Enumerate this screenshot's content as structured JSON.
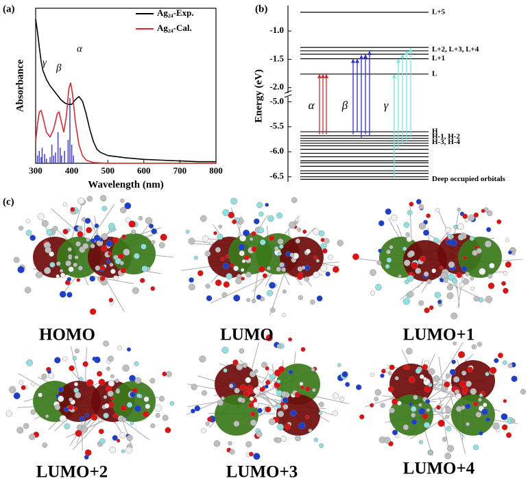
{
  "panels": {
    "a": "(a)",
    "b": "(b)",
    "c": "(c)"
  },
  "chart_data": [
    {
      "type": "line",
      "x_label": "Wavelength (nm)",
      "y_label": "Absorbance",
      "xlim": [
        300,
        800
      ],
      "xticks": [
        300,
        400,
        500,
        600,
        700,
        800
      ],
      "ylim": [
        0,
        1
      ],
      "legend": "upper right",
      "series": [
        {
          "name": "Ag₂₄-Exp.",
          "color": "#000000",
          "x": [
            300,
            305,
            310,
            315,
            320,
            330,
            340,
            350,
            360,
            370,
            380,
            390,
            400,
            410,
            420,
            430,
            440,
            450,
            460,
            470,
            480,
            500,
            550,
            600,
            650,
            700,
            750,
            800
          ],
          "values": [
            0.93,
            0.85,
            0.75,
            0.66,
            0.6,
            0.54,
            0.5,
            0.47,
            0.44,
            0.41,
            0.39,
            0.38,
            0.38,
            0.41,
            0.43,
            0.4,
            0.32,
            0.22,
            0.14,
            0.09,
            0.07,
            0.05,
            0.035,
            0.025,
            0.02,
            0.015,
            0.01,
            0.01
          ]
        },
        {
          "name": "Ag₂₄-Cal.",
          "color": "#e0262b",
          "x": [
            300,
            305,
            310,
            315,
            320,
            330,
            340,
            350,
            360,
            365,
            370,
            378,
            385,
            392,
            397,
            402,
            410,
            420,
            430,
            440,
            460,
            500,
            600,
            700,
            800
          ],
          "values": [
            0.14,
            0.25,
            0.33,
            0.34,
            0.3,
            0.2,
            0.17,
            0.22,
            0.32,
            0.33,
            0.28,
            0.2,
            0.3,
            0.48,
            0.52,
            0.45,
            0.27,
            0.12,
            0.05,
            0.02,
            0.005,
            0,
            0,
            0,
            0
          ]
        }
      ],
      "sticks": {
        "color": "#3b3bf0",
        "x": [
          305,
          310,
          315,
          318,
          325,
          330,
          340,
          345,
          350,
          355,
          362,
          368,
          372,
          380,
          390,
          395,
          400,
          405
        ],
        "values": [
          0.05,
          0.08,
          0.04,
          0.1,
          0.06,
          0.03,
          0.04,
          0.12,
          0.05,
          0.07,
          0.2,
          0.1,
          0.05,
          0.08,
          0.15,
          0.42,
          0.12,
          0.05
        ]
      },
      "peak_labels": [
        "γ",
        "β",
        "α"
      ]
    },
    {
      "type": "energy-levels",
      "y_label": "Energy (eV)",
      "segments": [
        {
          "ylim": [
            -2.1,
            -0.55
          ],
          "yticks": [
            {
              "value": -1,
              "label": "-1.0"
            },
            -1.5,
            {
              "value": -2,
              "label": "-2.0"
            }
          ]
        },
        {
          "ylim": [
            -6.6,
            -4.9
          ],
          "yticks": [
            {
              "value": -5,
              "label": "-5.0"
            },
            -5.5,
            {
              "value": -6,
              "label": "-6.0"
            },
            -6.5
          ]
        }
      ],
      "levels": [
        -0.67,
        -1.29,
        -1.35,
        -1.41,
        -1.49,
        -1.76,
        -5.6,
        -5.68,
        -5.73,
        -5.78,
        -5.83,
        -5.88,
        -5.95,
        -6.03,
        -6.1,
        -6.18,
        -6.22,
        -6.29,
        -6.38,
        -6.43,
        -6.5,
        -6.55
      ],
      "level_labels": [
        {
          "text": "L+5",
          "energy": -0.67
        },
        {
          "text": "L+2, L+3, L+4",
          "energy": -1.33
        },
        {
          "text": "L+1",
          "energy": -1.49
        },
        {
          "text": "L",
          "energy": -1.76
        },
        {
          "text": "H",
          "energy": -5.6
        },
        {
          "text": "H-1, H-2",
          "energy": -5.7
        },
        {
          "text": "H-3, H-4",
          "energy": -5.81
        },
        {
          "text": "Deep occupied orbitals",
          "energy": -6.55
        }
      ],
      "transitions": [
        {
          "label": "α",
          "color": "#d9262b",
          "arrows": [
            {
              "from": -5.65,
              "to": -1.76
            },
            {
              "from": -5.65,
              "to": -1.76
            },
            {
              "from": -5.65,
              "to": -1.76
            }
          ]
        },
        {
          "label": "β",
          "color": "#2a2fd6",
          "arrows": [
            {
              "from": -5.65,
              "to": -1.49
            },
            {
              "from": -5.6,
              "to": -1.49
            },
            {
              "from": -5.72,
              "to": -1.42
            },
            {
              "from": -5.65,
              "to": -1.41
            },
            {
              "from": -5.68,
              "to": -1.35
            }
          ]
        },
        {
          "label": "γ",
          "color": "#6fe6e6",
          "arrows": [
            {
              "from": -6.5,
              "to": -1.76
            },
            {
              "from": -5.95,
              "to": -1.49
            },
            {
              "from": -5.85,
              "to": -1.41
            },
            {
              "from": -5.8,
              "to": -1.35
            },
            {
              "from": -5.75,
              "to": -1.3
            }
          ]
        }
      ]
    }
  ],
  "orbitals": [
    "HOMO",
    "LUMO",
    "LUMO+1",
    "LUMO+2",
    "LUMO+3",
    "LUMO+4"
  ]
}
